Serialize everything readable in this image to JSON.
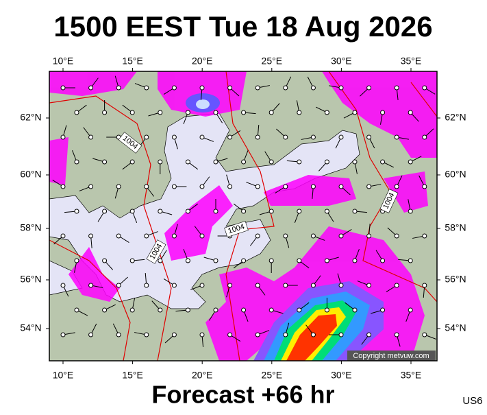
{
  "header": {
    "title": "1500 EEST Tue 18 Aug 2026"
  },
  "map": {
    "longitude_labels": [
      "10°E",
      "15°E",
      "20°E",
      "25°E",
      "30°E",
      "35°E"
    ],
    "latitude_labels": [
      "62°N",
      "60°N",
      "58°N",
      "56°N",
      "54°N"
    ],
    "isobar_labels": [
      "1004",
      "1004",
      "1004",
      "1004"
    ],
    "copyright": "Copyright metvuw.com"
  },
  "footer": {
    "forecast": "Forecast +66 hr",
    "model": "US6"
  }
}
